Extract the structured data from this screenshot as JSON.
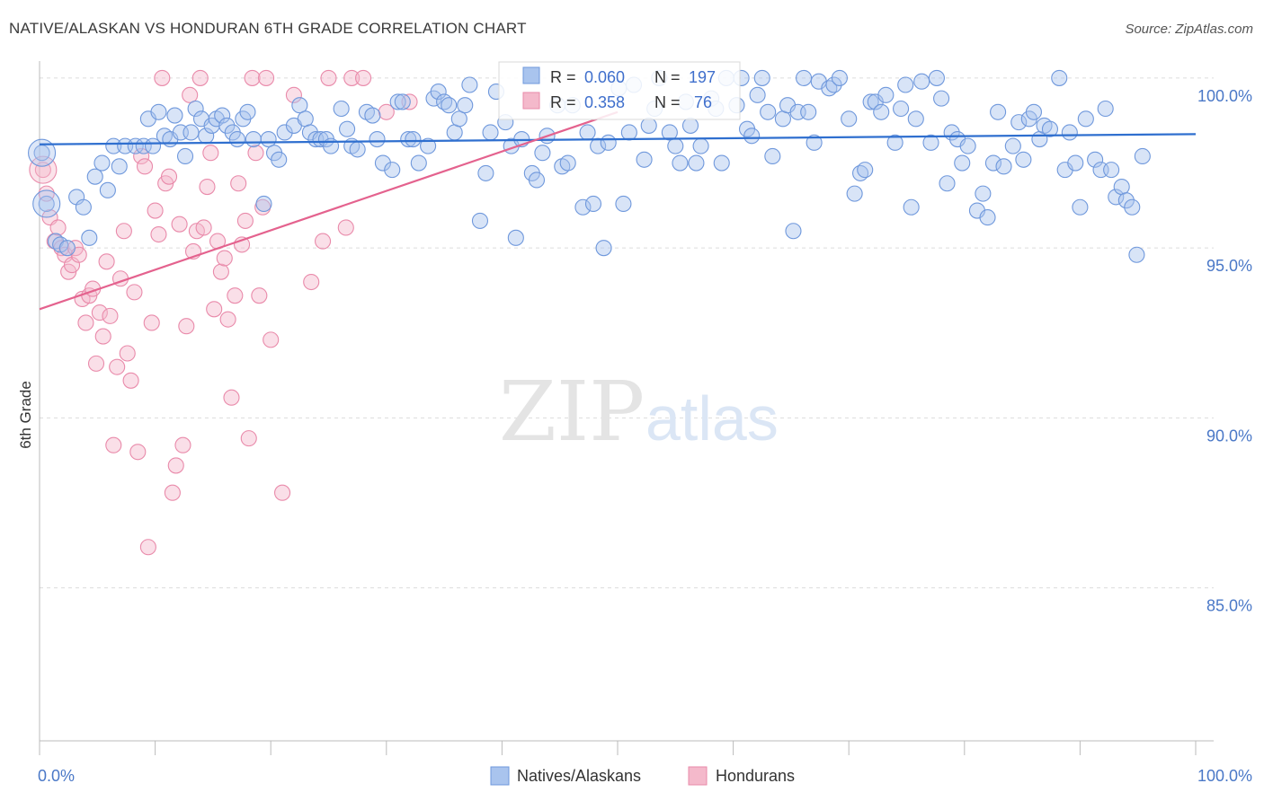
{
  "title": "NATIVE/ALASKAN VS HONDURAN 6TH GRADE CORRELATION CHART",
  "source": "Source: ZipAtlas.com",
  "watermark": {
    "zip": "ZIP",
    "atlas": "atlas"
  },
  "colors": {
    "blue_fill": "#a9c4ee",
    "blue_stroke": "#6f98dc",
    "blue_line": "#2f6fcf",
    "pink_fill": "#f4b9cb",
    "pink_stroke": "#e98aaa",
    "pink_line": "#e4628e",
    "tick_color": "#4a78c7",
    "grid": "#dcdcdc"
  },
  "legend_box": {
    "rows": [
      {
        "r_label": "R =",
        "r_value": "0.060",
        "n_label": "N =",
        "n_value": "197",
        "series": "blue"
      },
      {
        "r_label": "R =",
        "r_value": "0.358",
        "n_label": "N =",
        "n_value": "76",
        "series": "pink"
      }
    ]
  },
  "chart_data": {
    "type": "scatter",
    "xlabel": "",
    "ylabel": "6th Grade",
    "xlim": [
      0,
      100
    ],
    "ylim": [
      80.5,
      100.5
    ],
    "x_tick_labels": [
      "0.0%",
      "100.0%"
    ],
    "y_ticks": [
      85.0,
      90.0,
      95.0,
      100.0
    ],
    "y_tick_labels": [
      "85.0%",
      "90.0%",
      "95.0%",
      "100.0%"
    ],
    "grid": true,
    "legend_position": "bottom",
    "series": [
      {
        "name": "Natives/Alaskans",
        "color": "blue",
        "trend": {
          "x": [
            0,
            100
          ],
          "y": [
            98.05,
            98.35
          ]
        },
        "points": [
          [
            0.2,
            97.8
          ],
          [
            0.6,
            96.3
          ],
          [
            1.4,
            95.2
          ],
          [
            1.8,
            95.1
          ],
          [
            2.4,
            95.0
          ],
          [
            3.2,
            96.5
          ],
          [
            3.8,
            96.2
          ],
          [
            4.3,
            95.3
          ],
          [
            4.8,
            97.1
          ],
          [
            5.4,
            97.5
          ],
          [
            5.9,
            96.7
          ],
          [
            6.4,
            98.0
          ],
          [
            6.9,
            97.4
          ],
          [
            7.4,
            98.0
          ],
          [
            8.3,
            98.0
          ],
          [
            9.0,
            98.0
          ],
          [
            9.4,
            98.8
          ],
          [
            9.8,
            98.0
          ],
          [
            10.3,
            99.0
          ],
          [
            10.8,
            98.3
          ],
          [
            11.3,
            98.2
          ],
          [
            11.7,
            98.9
          ],
          [
            12.2,
            98.4
          ],
          [
            12.6,
            97.7
          ],
          [
            13.1,
            98.4
          ],
          [
            13.5,
            99.1
          ],
          [
            14.0,
            98.8
          ],
          [
            14.4,
            98.3
          ],
          [
            14.9,
            98.6
          ],
          [
            15.3,
            98.8
          ],
          [
            15.8,
            98.9
          ],
          [
            16.2,
            98.6
          ],
          [
            16.7,
            98.4
          ],
          [
            17.1,
            98.2
          ],
          [
            17.6,
            98.8
          ],
          [
            18.0,
            99.0
          ],
          [
            18.5,
            98.2
          ],
          [
            19.4,
            96.3
          ],
          [
            19.8,
            98.2
          ],
          [
            20.3,
            97.8
          ],
          [
            20.7,
            97.6
          ],
          [
            21.2,
            98.4
          ],
          [
            22.0,
            98.6
          ],
          [
            22.5,
            99.2
          ],
          [
            23.0,
            98.8
          ],
          [
            23.4,
            98.4
          ],
          [
            23.9,
            98.2
          ],
          [
            24.3,
            98.2
          ],
          [
            24.8,
            98.2
          ],
          [
            25.2,
            98.0
          ],
          [
            26.1,
            99.1
          ],
          [
            26.6,
            98.5
          ],
          [
            27.0,
            98.0
          ],
          [
            27.5,
            97.9
          ],
          [
            28.3,
            99.0
          ],
          [
            28.8,
            98.9
          ],
          [
            29.2,
            98.2
          ],
          [
            29.7,
            97.5
          ],
          [
            30.5,
            97.3
          ],
          [
            31.0,
            99.3
          ],
          [
            31.4,
            99.3
          ],
          [
            31.9,
            98.2
          ],
          [
            32.3,
            98.2
          ],
          [
            32.8,
            97.5
          ],
          [
            33.6,
            98.0
          ],
          [
            34.1,
            99.4
          ],
          [
            34.5,
            99.6
          ],
          [
            35.0,
            99.3
          ],
          [
            35.4,
            99.2
          ],
          [
            35.9,
            98.4
          ],
          [
            36.3,
            98.8
          ],
          [
            36.8,
            99.2
          ],
          [
            37.2,
            99.8
          ],
          [
            38.1,
            95.8
          ],
          [
            38.6,
            97.2
          ],
          [
            39.0,
            98.4
          ],
          [
            39.5,
            99.6
          ],
          [
            40.3,
            98.7
          ],
          [
            40.8,
            98.0
          ],
          [
            41.2,
            95.3
          ],
          [
            41.7,
            98.2
          ],
          [
            42.6,
            97.2
          ],
          [
            43.0,
            97.0
          ],
          [
            43.5,
            97.8
          ],
          [
            43.9,
            98.3
          ],
          [
            44.8,
            99.2
          ],
          [
            45.2,
            97.4
          ],
          [
            45.7,
            97.5
          ],
          [
            46.1,
            99.2
          ],
          [
            47.0,
            96.2
          ],
          [
            47.4,
            98.4
          ],
          [
            47.9,
            96.3
          ],
          [
            48.3,
            98.0
          ],
          [
            48.8,
            95.0
          ],
          [
            49.2,
            98.1
          ],
          [
            50.1,
            99.7
          ],
          [
            50.5,
            96.3
          ],
          [
            51.0,
            98.4
          ],
          [
            51.4,
            99.8
          ],
          [
            52.3,
            97.6
          ],
          [
            52.7,
            98.6
          ],
          [
            53.2,
            99.1
          ],
          [
            53.6,
            100.0
          ],
          [
            54.5,
            98.4
          ],
          [
            55.0,
            98.0
          ],
          [
            55.4,
            97.5
          ],
          [
            55.9,
            99.3
          ],
          [
            56.3,
            98.6
          ],
          [
            56.8,
            97.5
          ],
          [
            57.2,
            98.0
          ],
          [
            58.1,
            99.4
          ],
          [
            58.5,
            99.1
          ],
          [
            59.0,
            97.5
          ],
          [
            59.4,
            100.0
          ],
          [
            60.3,
            99.2
          ],
          [
            60.7,
            100.0
          ],
          [
            61.2,
            98.5
          ],
          [
            61.6,
            98.3
          ],
          [
            62.1,
            99.5
          ],
          [
            62.5,
            100.0
          ],
          [
            63.0,
            99.0
          ],
          [
            63.4,
            97.7
          ],
          [
            64.3,
            98.8
          ],
          [
            64.7,
            99.2
          ],
          [
            65.2,
            95.5
          ],
          [
            65.6,
            99.0
          ],
          [
            66.1,
            100.0
          ],
          [
            66.5,
            99.0
          ],
          [
            67.0,
            98.1
          ],
          [
            67.4,
            99.9
          ],
          [
            68.3,
            99.7
          ],
          [
            68.7,
            99.8
          ],
          [
            69.2,
            100.0
          ],
          [
            70.0,
            98.8
          ],
          [
            70.5,
            96.6
          ],
          [
            71.0,
            97.2
          ],
          [
            71.4,
            97.3
          ],
          [
            71.9,
            99.3
          ],
          [
            72.3,
            99.3
          ],
          [
            72.8,
            99.0
          ],
          [
            73.2,
            99.5
          ],
          [
            74.0,
            98.1
          ],
          [
            74.5,
            99.1
          ],
          [
            74.9,
            99.8
          ],
          [
            75.4,
            96.2
          ],
          [
            75.8,
            98.8
          ],
          [
            76.3,
            99.9
          ],
          [
            77.1,
            98.1
          ],
          [
            77.6,
            100.0
          ],
          [
            78.0,
            99.4
          ],
          [
            78.5,
            96.9
          ],
          [
            78.9,
            98.4
          ],
          [
            79.4,
            98.2
          ],
          [
            79.8,
            97.5
          ],
          [
            80.3,
            98.0
          ],
          [
            81.1,
            96.1
          ],
          [
            81.6,
            96.6
          ],
          [
            82.0,
            95.9
          ],
          [
            82.5,
            97.5
          ],
          [
            82.9,
            99.0
          ],
          [
            83.4,
            97.4
          ],
          [
            84.2,
            98.0
          ],
          [
            84.7,
            98.7
          ],
          [
            85.1,
            97.6
          ],
          [
            85.6,
            98.8
          ],
          [
            86.0,
            99.0
          ],
          [
            86.5,
            98.2
          ],
          [
            86.9,
            98.6
          ],
          [
            87.4,
            98.5
          ],
          [
            88.2,
            100.0
          ],
          [
            88.7,
            97.3
          ],
          [
            89.1,
            98.4
          ],
          [
            89.6,
            97.5
          ],
          [
            90.0,
            96.2
          ],
          [
            90.5,
            98.8
          ],
          [
            91.3,
            97.6
          ],
          [
            91.8,
            97.3
          ],
          [
            92.2,
            99.1
          ],
          [
            92.7,
            97.3
          ],
          [
            93.1,
            96.5
          ],
          [
            93.6,
            96.8
          ],
          [
            94.0,
            96.4
          ],
          [
            94.5,
            96.2
          ],
          [
            94.9,
            94.8
          ],
          [
            95.4,
            97.7
          ]
        ]
      },
      {
        "name": "Hondurans",
        "color": "pink",
        "trend": {
          "x": [
            0,
            50
          ],
          "y": [
            93.2,
            99.0
          ]
        },
        "points": [
          [
            0.3,
            97.3
          ],
          [
            0.6,
            96.6
          ],
          [
            0.9,
            95.9
          ],
          [
            1.3,
            95.2
          ],
          [
            1.6,
            95.6
          ],
          [
            1.9,
            95.0
          ],
          [
            2.2,
            94.8
          ],
          [
            2.5,
            94.3
          ],
          [
            2.8,
            94.5
          ],
          [
            3.1,
            95.0
          ],
          [
            3.4,
            94.8
          ],
          [
            3.7,
            93.5
          ],
          [
            4.0,
            92.8
          ],
          [
            4.3,
            93.6
          ],
          [
            4.6,
            93.8
          ],
          [
            4.9,
            91.6
          ],
          [
            5.2,
            93.1
          ],
          [
            5.5,
            92.4
          ],
          [
            5.8,
            94.6
          ],
          [
            6.1,
            93.0
          ],
          [
            6.4,
            89.2
          ],
          [
            6.7,
            91.5
          ],
          [
            7.0,
            94.1
          ],
          [
            7.3,
            95.5
          ],
          [
            7.6,
            91.9
          ],
          [
            7.9,
            91.1
          ],
          [
            8.2,
            93.7
          ],
          [
            8.5,
            89.0
          ],
          [
            8.8,
            97.7
          ],
          [
            9.1,
            97.4
          ],
          [
            9.4,
            86.2
          ],
          [
            9.7,
            92.8
          ],
          [
            10.0,
            96.1
          ],
          [
            10.3,
            95.4
          ],
          [
            10.6,
            100.0
          ],
          [
            10.9,
            96.9
          ],
          [
            11.2,
            97.1
          ],
          [
            11.5,
            87.8
          ],
          [
            11.8,
            88.6
          ],
          [
            12.1,
            95.7
          ],
          [
            12.4,
            89.2
          ],
          [
            12.7,
            92.7
          ],
          [
            13.0,
            99.5
          ],
          [
            13.3,
            94.9
          ],
          [
            13.6,
            95.5
          ],
          [
            13.9,
            100.0
          ],
          [
            14.2,
            95.6
          ],
          [
            14.5,
            96.8
          ],
          [
            14.8,
            97.8
          ],
          [
            15.1,
            93.2
          ],
          [
            15.4,
            95.2
          ],
          [
            15.7,
            94.3
          ],
          [
            16.0,
            94.7
          ],
          [
            16.3,
            92.9
          ],
          [
            16.6,
            90.6
          ],
          [
            16.9,
            93.6
          ],
          [
            17.2,
            96.9
          ],
          [
            17.5,
            95.1
          ],
          [
            17.8,
            95.8
          ],
          [
            18.1,
            89.4
          ],
          [
            18.4,
            100.0
          ],
          [
            18.7,
            97.8
          ],
          [
            19.0,
            93.6
          ],
          [
            19.3,
            96.2
          ],
          [
            19.6,
            100.0
          ],
          [
            20.0,
            92.3
          ],
          [
            21.0,
            87.8
          ],
          [
            22.0,
            99.5
          ],
          [
            23.5,
            94.0
          ],
          [
            24.5,
            95.2
          ],
          [
            25.0,
            100.0
          ],
          [
            26.5,
            95.6
          ],
          [
            27.0,
            100.0
          ],
          [
            28.0,
            100.0
          ],
          [
            30.0,
            99.0
          ],
          [
            32.0,
            99.3
          ]
        ]
      }
    ]
  }
}
